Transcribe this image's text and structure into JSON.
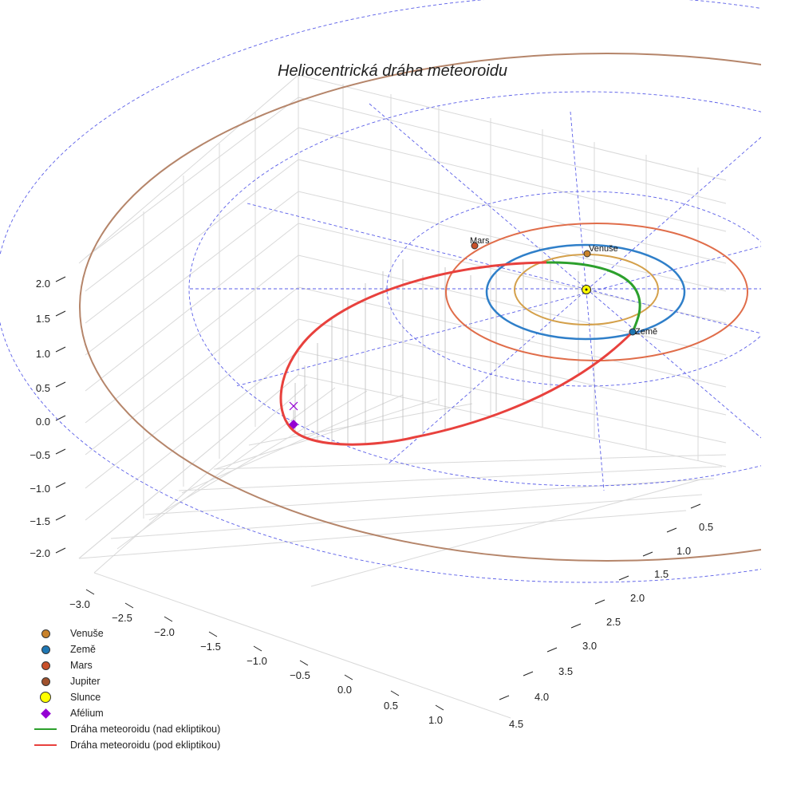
{
  "chart_data": {
    "type": "line",
    "projection": "3d",
    "title": "Heliocentrická dráha meteoroidu",
    "xlabel": "",
    "ylabel": "",
    "zlabel": "",
    "x_ticks": [
      "−3.0",
      "−2.5",
      "−2.0",
      "−1.5",
      "−1.0",
      "−0.5",
      "0.0",
      "0.5",
      "1.0"
    ],
    "y_ticks": [
      "0.5",
      "1.0",
      "1.5",
      "2.0",
      "2.5",
      "3.0",
      "3.5",
      "4.0",
      "4.5"
    ],
    "z_ticks": [
      "2.0",
      "1.5",
      "1.0",
      "0.5",
      "0.0",
      "−0.5",
      "−1.0",
      "−1.5",
      "−2.0"
    ],
    "planets": [
      {
        "name": "Venuše",
        "orbit_radius_au": 0.72,
        "color": "#d4a04a",
        "marker_color": "#c9822a",
        "label": "Venuše"
      },
      {
        "name": "Země",
        "orbit_radius_au": 1.0,
        "color": "#2f7fc9",
        "marker_color": "#1f77b4",
        "label": "Země"
      },
      {
        "name": "Mars",
        "orbit_radius_au": 1.52,
        "color": "#e06d4a",
        "marker_color": "#c8502a",
        "label": "Mars"
      },
      {
        "name": "Jupiter",
        "orbit_radius_au": 5.2,
        "color": "#b5856a",
        "marker_color": "#a0522d",
        "label": ""
      }
    ],
    "series": [
      {
        "name": "Dráha meteoroidu (nad ekliptikou)",
        "color": "#2ca02c"
      },
      {
        "name": "Dráha meteoroidu (pod ekliptikou)",
        "color": "#e8413d"
      }
    ],
    "points": [
      {
        "name": "Slunce",
        "x": 0,
        "y": 0,
        "z": 0,
        "color": "#ffff00"
      },
      {
        "name": "Afélium",
        "color": "#9400d3"
      }
    ],
    "legend": [
      {
        "label": "Venuše",
        "kind": "dot",
        "color": "#c9822a"
      },
      {
        "label": "Země",
        "kind": "dot",
        "color": "#1f77b4"
      },
      {
        "label": "Mars",
        "kind": "dot",
        "color": "#c8502a"
      },
      {
        "label": "Jupiter",
        "kind": "dot",
        "color": "#a0522d"
      },
      {
        "label": "Slunce",
        "kind": "sun",
        "color": "#ffff00"
      },
      {
        "label": "Afélium",
        "kind": "diamond",
        "color": "#9400d3"
      },
      {
        "label": "Dráha meteoroidu (nad ekliptikou)",
        "kind": "line",
        "color": "#2ca02c"
      },
      {
        "label": "Dráha meteoroidu (pod ekliptikou)",
        "kind": "line",
        "color": "#e8413d"
      }
    ],
    "legend_position": "bottom-left",
    "grid": true
  }
}
